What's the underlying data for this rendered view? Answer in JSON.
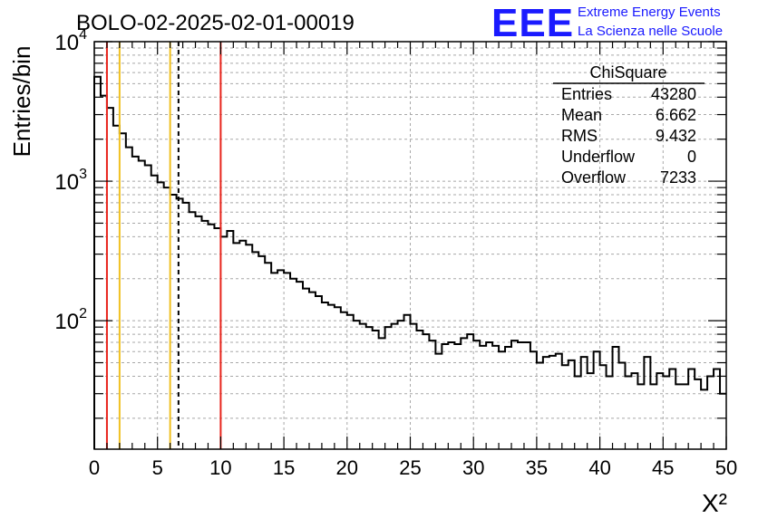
{
  "title": "BOLO-02-2025-02-01-00019",
  "logo": {
    "text": "EEE",
    "line1": "Extreme Energy Events",
    "line2": "La Scienza nelle Scuole",
    "color": "#1a1aff"
  },
  "stats_box": {
    "name": "ChiSquare",
    "rows": [
      {
        "label": "Entries",
        "value": "43280"
      },
      {
        "label": "Mean",
        "value": "6.662"
      },
      {
        "label": "RMS",
        "value": "9.432"
      },
      {
        "label": "Underflow",
        "value": "0"
      },
      {
        "label": "Overflow",
        "value": "7233"
      }
    ]
  },
  "chart_data": {
    "type": "histogram",
    "title": "BOLO-02-2025-02-01-00019",
    "xlabel": "X²",
    "ylabel": "Entries/bin",
    "xlim": [
      0,
      50
    ],
    "ylim": [
      12,
      10000
    ],
    "yscale": "log",
    "bin_width": 0.5,
    "x_ticks": [
      0,
      5,
      10,
      15,
      20,
      25,
      30,
      35,
      40,
      45,
      50
    ],
    "y_tick_labels": [
      {
        "value": 100,
        "base": "10",
        "exp": "2"
      },
      {
        "value": 1000,
        "base": "10",
        "exp": "3"
      },
      {
        "value": 10000,
        "base": "10",
        "exp": "4"
      }
    ],
    "grid": true,
    "values": [
      5600,
      4100,
      3350,
      2500,
      2200,
      1750,
      1500,
      1400,
      1300,
      1100,
      980,
      900,
      800,
      750,
      700,
      600,
      560,
      520,
      490,
      460,
      400,
      440,
      360,
      375,
      350,
      310,
      290,
      260,
      220,
      230,
      220,
      200,
      190,
      170,
      160,
      150,
      135,
      130,
      125,
      115,
      110,
      100,
      95,
      90,
      85,
      75,
      90,
      95,
      100,
      110,
      95,
      85,
      80,
      72,
      58,
      68,
      70,
      68,
      75,
      80,
      72,
      66,
      70,
      66,
      60,
      65,
      72,
      70,
      70,
      60,
      50,
      55,
      56,
      58,
      48,
      52,
      40,
      55,
      42,
      60,
      48,
      40,
      65,
      50,
      40,
      42,
      35,
      55,
      35,
      42,
      40,
      45,
      35,
      35,
      45,
      38,
      32,
      40,
      45,
      30
    ],
    "vertical_lines": [
      {
        "x": 1,
        "color": "#e8241c",
        "style": "solid"
      },
      {
        "x": 2,
        "color": "#f0c020",
        "style": "solid"
      },
      {
        "x": 6,
        "color": "#f0c020",
        "style": "solid"
      },
      {
        "x": 6.662,
        "color": "#000000",
        "style": "dashed"
      },
      {
        "x": 10,
        "color": "#e8241c",
        "style": "solid"
      }
    ]
  }
}
